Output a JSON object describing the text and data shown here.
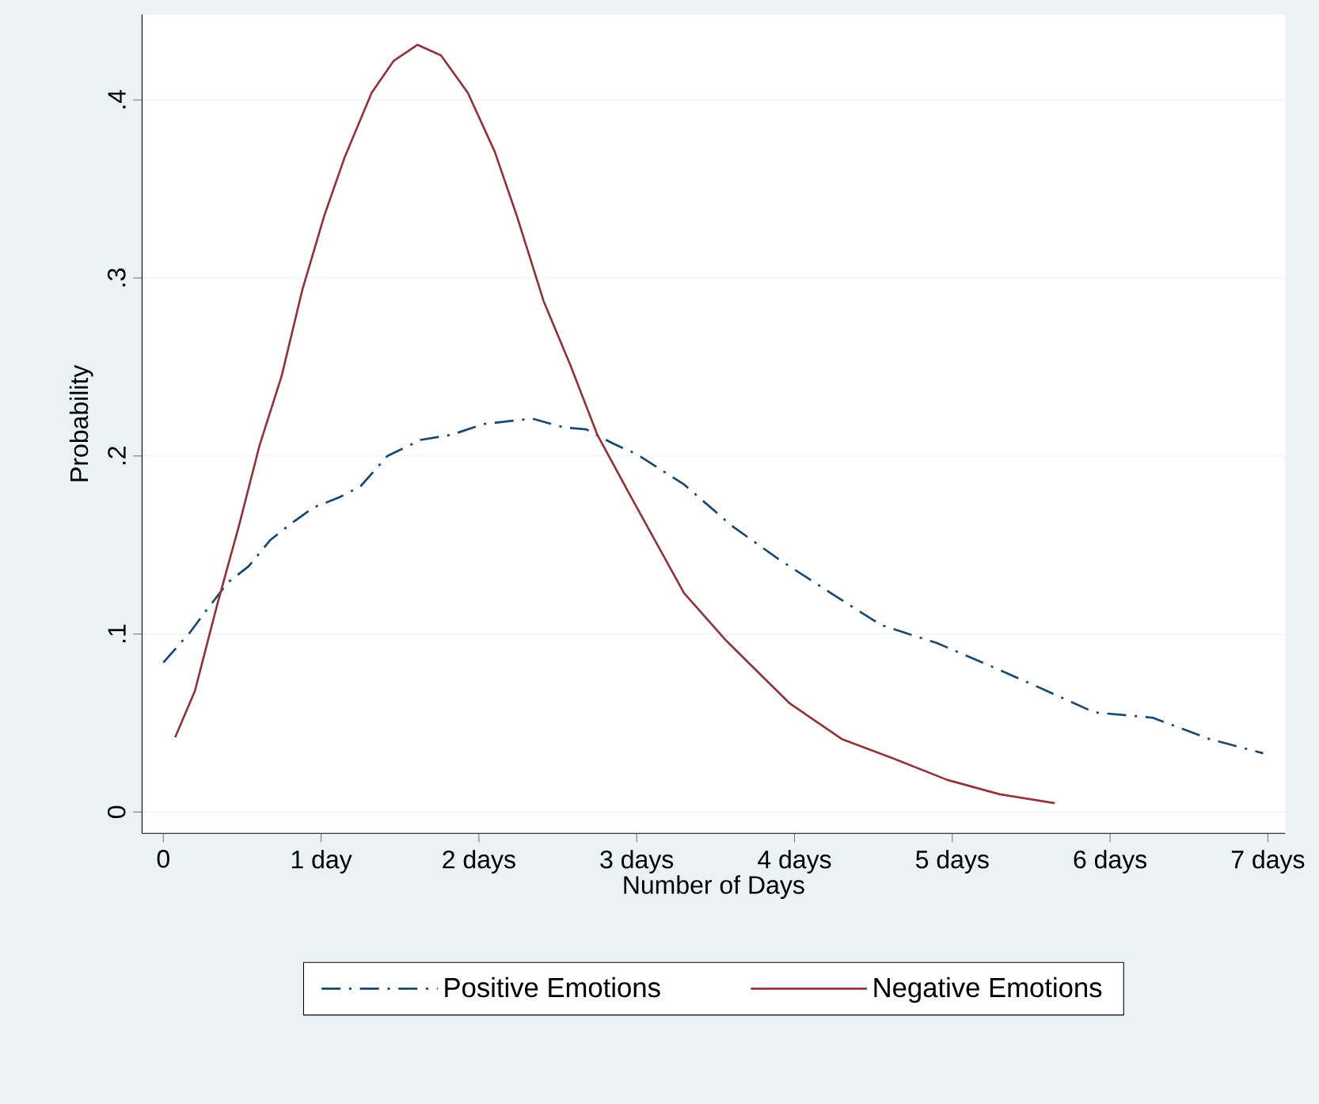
{
  "chart_data": {
    "type": "line",
    "xlabel": "Number of Days",
    "ylabel": "Probability",
    "xlim": [
      -0.135,
      7.11
    ],
    "ylim": [
      -0.012,
      0.448
    ],
    "xticks": [
      0,
      {
        "value": 1,
        "label": "1 day"
      },
      {
        "value": 2,
        "label": "2 days"
      },
      {
        "value": 3,
        "label": "3 days"
      },
      {
        "value": 4,
        "label": "4 days"
      },
      {
        "value": 5,
        "label": "5 days"
      },
      {
        "value": 6,
        "label": "6 days"
      },
      {
        "value": 7,
        "label": "7 days"
      }
    ],
    "yticks": [
      0,
      {
        "value": 0.1,
        "label": ".1"
      },
      {
        "value": 0.2,
        "label": ".2"
      },
      {
        "value": 0.3,
        "label": ".3"
      },
      {
        "value": 0.4,
        "label": ".4"
      }
    ],
    "grid": "y",
    "legend": "bottom",
    "marker": "none",
    "series": [
      {
        "name": "Positive Emotions",
        "color": "#1a476f",
        "line_style": "dashed",
        "x": [
          0,
          0.17,
          0.27,
          0.41,
          0.54,
          0.68,
          0.81,
          0.95,
          1.12,
          1.25,
          1.42,
          1.63,
          1.83,
          2.03,
          2.34,
          2.54,
          2.68,
          2.85,
          3.0,
          3.3,
          3.6,
          3.9,
          4.23,
          4.55,
          4.9,
          5.27,
          5.6,
          5.9,
          6.27,
          6.63,
          6.97
        ],
        "values": [
          0.084,
          0.101,
          0.113,
          0.129,
          0.138,
          0.153,
          0.162,
          0.171,
          0.177,
          0.183,
          0.2,
          0.209,
          0.212,
          0.218,
          0.221,
          0.216,
          0.215,
          0.207,
          0.201,
          0.184,
          0.161,
          0.142,
          0.123,
          0.105,
          0.095,
          0.081,
          0.068,
          0.056,
          0.053,
          0.041,
          0.033
        ]
      },
      {
        "name": "Negative Emotions",
        "color": "#90353b",
        "line_style": "solid",
        "x": [
          0.075,
          0.2,
          0.34,
          0.48,
          0.61,
          0.75,
          0.88,
          1.02,
          1.15,
          1.32,
          1.46,
          1.61,
          1.76,
          1.93,
          2.1,
          2.24,
          2.41,
          2.58,
          2.75,
          2.97,
          3.3,
          3.57,
          3.97,
          4.3,
          4.63,
          4.97,
          5.3,
          5.65
        ],
        "values": [
          0.042,
          0.068,
          0.116,
          0.161,
          0.206,
          0.245,
          0.293,
          0.335,
          0.368,
          0.404,
          0.422,
          0.431,
          0.425,
          0.404,
          0.371,
          0.335,
          0.287,
          0.251,
          0.212,
          0.176,
          0.123,
          0.096,
          0.061,
          0.041,
          0.03,
          0.018,
          0.01,
          0.005
        ]
      }
    ]
  }
}
